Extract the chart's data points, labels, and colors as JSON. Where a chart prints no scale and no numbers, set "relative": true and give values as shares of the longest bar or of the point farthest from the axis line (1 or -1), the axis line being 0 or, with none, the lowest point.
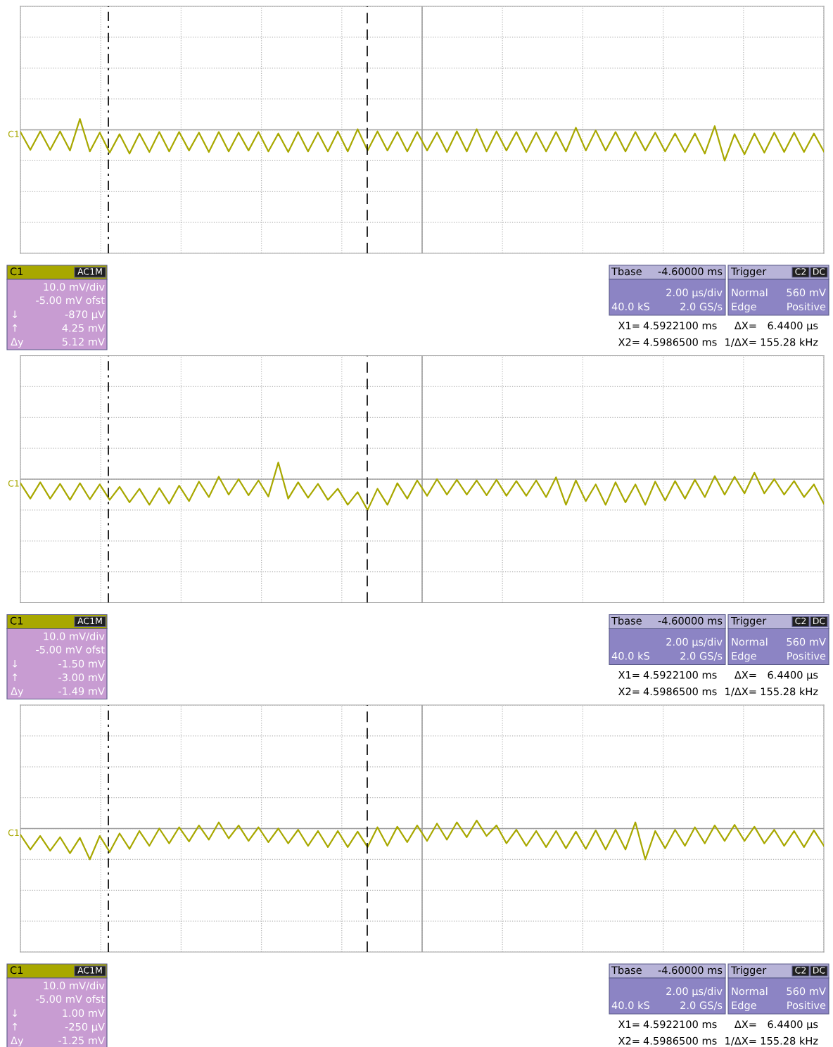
{
  "chart_data": [
    {
      "type": "line",
      "relative": true,
      "grid": true,
      "ylabel": "C1",
      "categories": [
        null,
        null,
        null,
        null,
        null,
        null,
        null,
        null,
        null,
        null,
        null,
        null,
        null,
        null,
        null,
        null,
        null,
        null,
        null,
        null,
        null,
        null,
        null,
        null,
        null,
        null,
        null,
        null,
        null,
        null,
        null,
        null,
        null,
        null,
        null,
        null,
        null,
        null,
        null,
        null,
        null,
        null,
        null,
        null,
        null,
        null,
        null,
        null,
        null,
        null,
        null,
        null,
        null,
        null,
        null,
        null,
        null,
        null,
        null,
        null,
        null,
        null,
        null,
        null,
        null,
        null,
        null,
        null,
        null,
        null,
        null,
        null,
        null,
        null,
        null,
        null,
        null,
        null,
        null,
        null,
        null,
        null
      ],
      "series": [
        {
          "color": "#a8a800",
          "values": [
            -0.07,
            -0.65,
            -0.05,
            -0.65,
            -0.05,
            -0.67,
            0.35,
            -0.7,
            -0.09,
            -0.74,
            -0.14,
            -0.77,
            -0.12,
            -0.72,
            -0.07,
            -0.7,
            -0.07,
            -0.67,
            -0.09,
            -0.72,
            -0.07,
            -0.7,
            -0.09,
            -0.67,
            -0.07,
            -0.7,
            -0.12,
            -0.72,
            -0.07,
            -0.7,
            -0.09,
            -0.7,
            -0.05,
            -0.7,
            0.02,
            -0.67,
            -0.05,
            -0.67,
            -0.07,
            -0.7,
            -0.07,
            -0.67,
            -0.09,
            -0.72,
            -0.05,
            -0.7,
            0.02,
            -0.7,
            -0.05,
            -0.67,
            -0.07,
            -0.72,
            -0.09,
            -0.7,
            -0.07,
            -0.7,
            0.07,
            -0.67,
            -0.02,
            -0.67,
            -0.07,
            -0.7,
            -0.07,
            -0.67,
            -0.09,
            -0.7,
            -0.12,
            -0.72,
            -0.12,
            -0.77,
            0.12,
            -1,
            -0.14,
            -0.79,
            -0.12,
            -0.74,
            -0.09,
            -0.72,
            -0.09,
            -0.72,
            -0.12,
            -0.7
          ]
        }
      ],
      "annotations": [
        "C1",
        "AC1M",
        "10.0 mV/div",
        "-5.00 mV ofst",
        "↓",
        "-870 µV",
        "↑",
        "4.25 mV",
        "Δy",
        "5.12 mV",
        "Tbase",
        "-4.60000 ms",
        "2.00 µs/div",
        "40.0 kS",
        "2.0 GS/s",
        "Trigger",
        "C2",
        "DC",
        "Normal",
        "560 mV",
        "Edge",
        "Positive",
        "X1=",
        "4.5922100 ms",
        "ΔX=",
        "6.4400 µs",
        "X2=",
        "4.5986500 ms",
        "1/ΔX=",
        "155.28 kHz"
      ]
    },
    {
      "type": "line",
      "relative": true,
      "grid": true,
      "ylabel": "C1",
      "categories": [
        null,
        null,
        null,
        null,
        null,
        null,
        null,
        null,
        null,
        null,
        null,
        null,
        null,
        null,
        null,
        null,
        null,
        null,
        null,
        null,
        null,
        null,
        null,
        null,
        null,
        null,
        null,
        null,
        null,
        null,
        null,
        null,
        null,
        null,
        null,
        null,
        null,
        null,
        null,
        null,
        null,
        null,
        null,
        null,
        null,
        null,
        null,
        null,
        null,
        null,
        null,
        null,
        null,
        null,
        null,
        null,
        null,
        null,
        null,
        null,
        null,
        null,
        null,
        null,
        null,
        null,
        null,
        null,
        null,
        null,
        null,
        null,
        null,
        null,
        null,
        null,
        null,
        null,
        null,
        null,
        null,
        null
      ],
      "series": [
        {
          "color": "#a8a800",
          "values": [
            -0.13,
            -0.63,
            -0.1,
            -0.63,
            -0.15,
            -0.67,
            -0.13,
            -0.65,
            -0.17,
            -0.67,
            -0.25,
            -0.75,
            -0.31,
            -0.83,
            -0.29,
            -0.79,
            -0.21,
            -0.71,
            -0.08,
            -0.58,
            0.08,
            -0.5,
            0,
            -0.52,
            -0.04,
            -0.56,
            0.54,
            -0.63,
            -0.1,
            -0.6,
            -0.15,
            -0.67,
            -0.31,
            -0.83,
            -0.42,
            -1,
            -0.31,
            -0.83,
            -0.13,
            -0.63,
            -0.04,
            -0.54,
            0,
            -0.5,
            -0.02,
            -0.5,
            -0.04,
            -0.52,
            -0.02,
            -0.54,
            -0.06,
            -0.54,
            -0.04,
            -0.58,
            0.06,
            -0.83,
            -0.04,
            -0.71,
            -0.17,
            -0.83,
            -0.1,
            -0.75,
            -0.17,
            -0.83,
            -0.08,
            -0.69,
            -0.06,
            -0.63,
            -0.02,
            -0.58,
            0.1,
            -0.5,
            0.08,
            -0.46,
            0.21,
            -0.46,
            0,
            -0.5,
            -0.06,
            -0.58,
            -0.17,
            -0.79
          ]
        }
      ],
      "annotations": [
        "C1",
        "AC1M",
        "10.0 mV/div",
        "-5.00 mV ofst",
        "↓",
        "-1.50 mV",
        "↑",
        "-3.00 mV",
        "Δy",
        "-1.49 mV",
        "Tbase",
        "-4.60000 ms",
        "2.00 µs/div",
        "40.0 kS",
        "2.0 GS/s",
        "Trigger",
        "C2",
        "DC",
        "Normal",
        "560 mV",
        "Edge",
        "Positive",
        "X1=",
        "4.5922100 ms",
        "ΔX=",
        "6.4400 µs",
        "X2=",
        "4.5986500 ms",
        "1/ΔX=",
        "155.28 kHz"
      ]
    },
    {
      "type": "line",
      "relative": true,
      "grid": true,
      "ylabel": "C1",
      "categories": [
        null,
        null,
        null,
        null,
        null,
        null,
        null,
        null,
        null,
        null,
        null,
        null,
        null,
        null,
        null,
        null,
        null,
        null,
        null,
        null,
        null,
        null,
        null,
        null,
        null,
        null,
        null,
        null,
        null,
        null,
        null,
        null,
        null,
        null,
        null,
        null,
        null,
        null,
        null,
        null,
        null,
        null,
        null,
        null,
        null,
        null,
        null,
        null,
        null,
        null,
        null,
        null,
        null,
        null,
        null,
        null,
        null,
        null,
        null,
        null,
        null,
        null,
        null,
        null,
        null,
        null,
        null,
        null,
        null,
        null,
        null,
        null,
        null,
        null,
        null,
        null,
        null,
        null,
        null,
        null,
        null,
        null
      ],
      "series": [
        {
          "color": "#a8a800",
          "values": [
            -0.2,
            -0.68,
            -0.24,
            -0.72,
            -0.28,
            -0.8,
            -0.3,
            -1,
            -0.24,
            -0.76,
            -0.16,
            -0.66,
            -0.08,
            -0.56,
            0,
            -0.48,
            0.04,
            -0.42,
            0.1,
            -0.36,
            0.2,
            -0.32,
            0.1,
            -0.4,
            0.04,
            -0.44,
            0,
            -0.48,
            -0.04,
            -0.56,
            -0.08,
            -0.6,
            -0.08,
            -0.6,
            -0.1,
            -0.6,
            0.04,
            -0.56,
            0.06,
            -0.44,
            0.1,
            -0.4,
            0.16,
            -0.36,
            0.2,
            -0.28,
            0.26,
            -0.24,
            0.1,
            -0.48,
            -0.04,
            -0.56,
            -0.08,
            -0.6,
            -0.08,
            -0.64,
            -0.1,
            -0.66,
            -0.06,
            -0.68,
            -0.04,
            -0.68,
            0.2,
            -1,
            -0.08,
            -0.64,
            -0.04,
            -0.56,
            0.04,
            -0.48,
            0.1,
            -0.4,
            0.12,
            -0.4,
            0.06,
            -0.48,
            -0.04,
            -0.56,
            -0.08,
            -0.6,
            -0.06,
            -0.56
          ]
        }
      ],
      "annotations": [
        "C1",
        "AC1M",
        "10.0 mV/div",
        "-5.00 mV ofst",
        "↓",
        "1.00 mV",
        "↑",
        "-250 µV",
        "Δy",
        "-1.25 mV",
        "Tbase",
        "-4.60000 ms",
        "2.00 µs/div",
        "40.0 kS",
        "2.0 GS/s",
        "Trigger",
        "C2",
        "DC",
        "Normal",
        "560 mV",
        "Edge",
        "Positive",
        "X1=",
        "4.5922100 ms",
        "ΔX=",
        "6.4400 µs",
        "X2=",
        "4.5986500 ms",
        "1/ΔX=",
        "155.28 kHz"
      ]
    }
  ]
}
